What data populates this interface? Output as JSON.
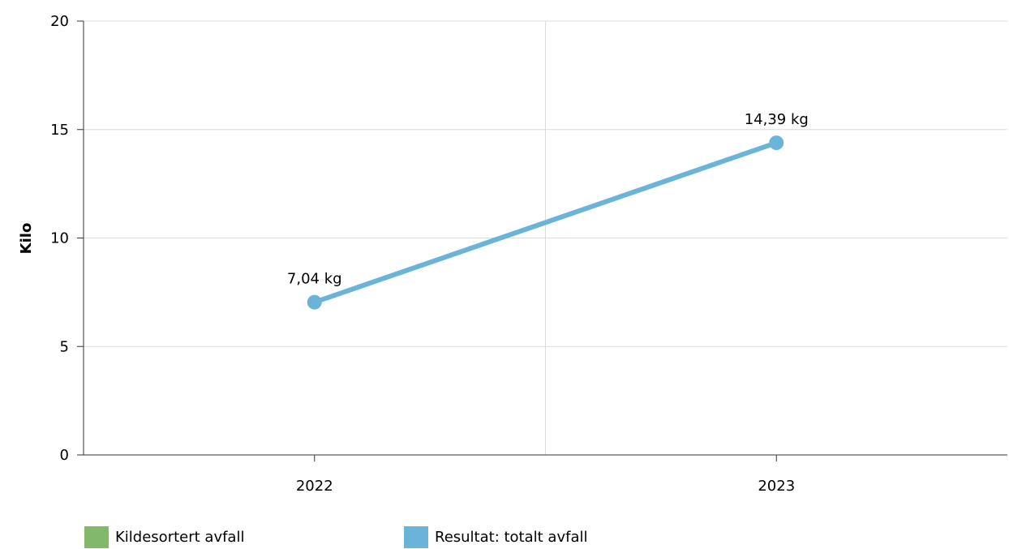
{
  "chart_data": {
    "type": "line",
    "title": "",
    "ylabel": "Kilo",
    "xlabel": "",
    "categories": [
      "2022",
      "2023"
    ],
    "ylim": [
      0,
      20
    ],
    "yticks": [
      0,
      5,
      10,
      15,
      20
    ],
    "ytick_labels": [
      "0",
      "5",
      "10",
      "15",
      "20"
    ],
    "grid": true,
    "legend_position": "bottom-left",
    "series": [
      {
        "name": "Resultat: totalt avfall",
        "color": "#6ab4d9",
        "values": [
          7.04,
          14.39
        ],
        "data_labels": [
          "7,04 kg",
          "14,39 kg"
        ]
      }
    ],
    "legend": [
      {
        "label": "Kildesortert avfall",
        "color": "#82b86a"
      },
      {
        "label": "Resultat: totalt avfall",
        "color": "#6ab4d9"
      }
    ]
  }
}
